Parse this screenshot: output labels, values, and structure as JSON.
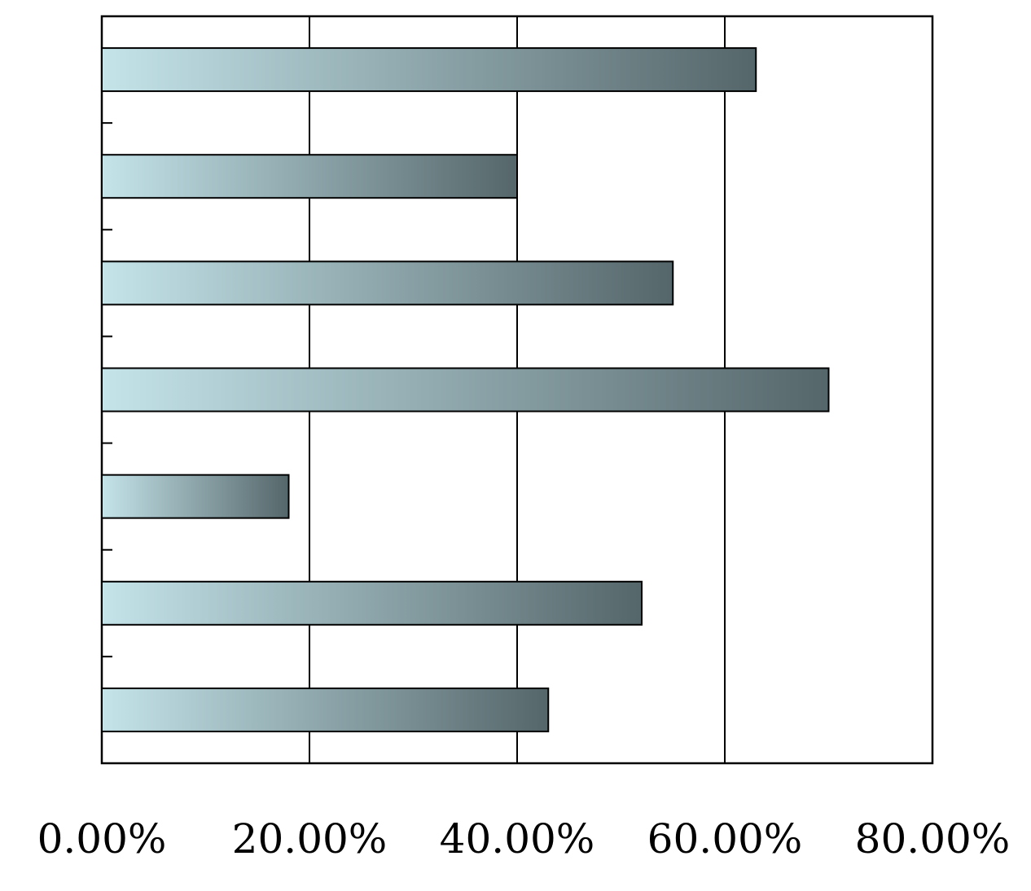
{
  "chart_data": {
    "type": "barh",
    "categories": [
      null,
      null,
      null,
      null,
      null,
      null,
      null
    ],
    "values": [
      63,
      40,
      55,
      70,
      18,
      52,
      43
    ],
    "gradient": [
      "#c4e4ea",
      "#55666a"
    ],
    "xlim": [
      0,
      80
    ],
    "xticks": [
      {
        "value": 0,
        "label": "0.00%"
      },
      {
        "value": 20,
        "label": "20.00%"
      },
      {
        "value": 40,
        "label": "40.00%"
      },
      {
        "value": 60,
        "label": "60.00%"
      },
      {
        "value": 80,
        "label": "80.00%"
      }
    ],
    "grid": true
  }
}
